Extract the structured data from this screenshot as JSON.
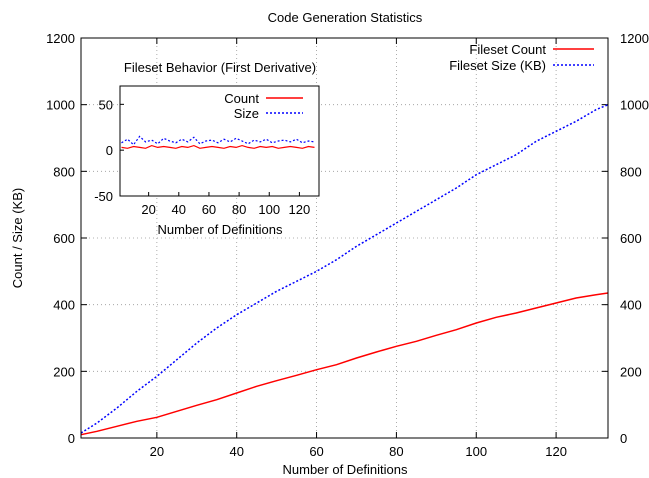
{
  "chart_data": [
    {
      "type": "line",
      "title": "Code Generation Statistics",
      "xlabel": "Number of Definitions",
      "ylabel": "Count / Size (KB)",
      "xlim": [
        1,
        133
      ],
      "ylim": [
        0,
        1200
      ],
      "x_ticks": [
        20,
        40,
        60,
        80,
        100,
        120
      ],
      "y_ticks": [
        0,
        200,
        400,
        600,
        800,
        1000,
        1200
      ],
      "y2_ticks": [
        0,
        200,
        400,
        600,
        800,
        1000,
        1200
      ],
      "grid": true,
      "legend_position": "top-right",
      "series": [
        {
          "name": "Fileset Count",
          "color": "#ff0000",
          "style": "solid",
          "x": [
            1,
            5,
            10,
            15,
            20,
            25,
            30,
            35,
            40,
            45,
            50,
            55,
            60,
            65,
            70,
            75,
            80,
            85,
            90,
            95,
            100,
            105,
            110,
            115,
            120,
            125,
            130,
            133
          ],
          "y": [
            10,
            20,
            35,
            50,
            62,
            80,
            98,
            115,
            135,
            155,
            172,
            188,
            205,
            220,
            240,
            258,
            275,
            290,
            308,
            325,
            345,
            362,
            375,
            390,
            405,
            420,
            430,
            435
          ]
        },
        {
          "name": "Fileset Size (KB)",
          "color": "#0000ff",
          "style": "dotted",
          "x": [
            1,
            5,
            10,
            15,
            20,
            25,
            30,
            35,
            40,
            45,
            50,
            55,
            60,
            65,
            70,
            75,
            80,
            85,
            90,
            95,
            100,
            105,
            110,
            115,
            120,
            125,
            130,
            133
          ],
          "y": [
            15,
            45,
            90,
            140,
            185,
            235,
            285,
            330,
            370,
            405,
            440,
            470,
            500,
            535,
            575,
            610,
            645,
            680,
            715,
            750,
            790,
            820,
            850,
            890,
            920,
            950,
            985,
            1000
          ]
        }
      ]
    },
    {
      "type": "line",
      "title": "Fileset Behavior (First Derivative)",
      "xlabel": "Number of Definitions",
      "ylabel": "",
      "xlim": [
        1,
        133
      ],
      "ylim": [
        -50,
        70
      ],
      "x_ticks": [
        20,
        40,
        60,
        80,
        100,
        120
      ],
      "y_ticks": [
        -50,
        0,
        50
      ],
      "grid": false,
      "legend_position": "top-center",
      "series": [
        {
          "name": "Count",
          "color": "#ff0000",
          "style": "solid",
          "x": [
            2,
            6,
            10,
            14,
            18,
            22,
            26,
            30,
            34,
            38,
            42,
            46,
            50,
            54,
            58,
            62,
            66,
            70,
            74,
            78,
            82,
            86,
            90,
            94,
            98,
            102,
            106,
            110,
            114,
            118,
            122,
            126,
            130
          ],
          "y": [
            3,
            2,
            4,
            3,
            2,
            5,
            3,
            4,
            3,
            2,
            4,
            3,
            5,
            2,
            3,
            4,
            3,
            2,
            4,
            3,
            5,
            3,
            2,
            4,
            3,
            4,
            2,
            3,
            4,
            3,
            2,
            4,
            3
          ]
        },
        {
          "name": "Size",
          "color": "#0000ff",
          "style": "dotted",
          "x": [
            2,
            6,
            10,
            14,
            18,
            22,
            26,
            30,
            34,
            38,
            42,
            46,
            50,
            54,
            58,
            62,
            66,
            70,
            74,
            78,
            82,
            86,
            90,
            94,
            98,
            102,
            106,
            110,
            114,
            118,
            122,
            126,
            130
          ],
          "y": [
            8,
            12,
            6,
            15,
            9,
            11,
            7,
            13,
            10,
            8,
            12,
            9,
            14,
            7,
            10,
            11,
            8,
            12,
            9,
            13,
            10,
            7,
            11,
            9,
            12,
            8,
            10,
            11,
            9,
            12,
            8,
            10,
            9
          ]
        }
      ]
    }
  ]
}
